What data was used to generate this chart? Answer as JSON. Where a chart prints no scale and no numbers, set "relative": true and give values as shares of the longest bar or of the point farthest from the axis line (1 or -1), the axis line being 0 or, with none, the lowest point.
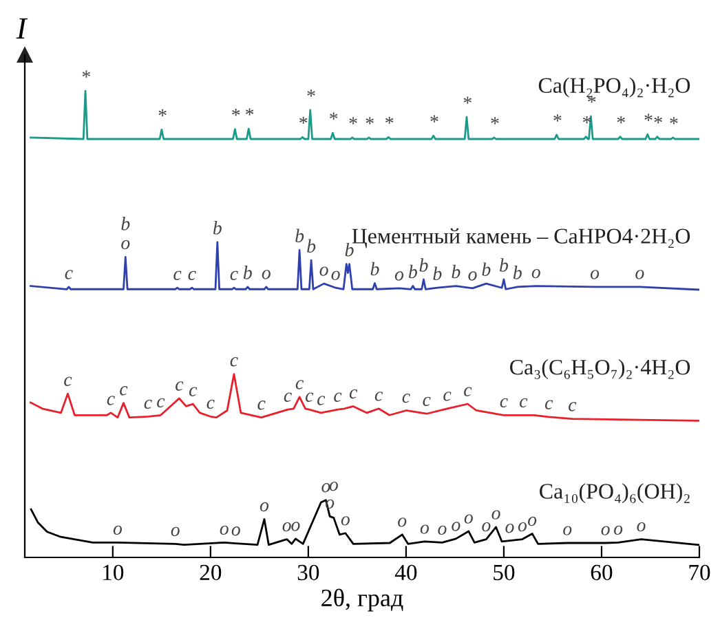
{
  "chart_data": {
    "type": "line",
    "relative": true,
    "xlabel": "2θ, град",
    "ylabel": "I",
    "xlim": [
      1,
      70
    ],
    "xticks": [
      10,
      20,
      30,
      40,
      50,
      60,
      70
    ],
    "tick_labels": "x",
    "grid": false,
    "legend": false,
    "marker": "none",
    "line_style": "solid",
    "series": [
      {
        "name": "Ca(H₂PO₄)₂·H₂O",
        "color": "#1a9a8a",
        "x": [
          1.6,
          7.0,
          7.2,
          7.4,
          14.8,
          15.0,
          15.2,
          22.3,
          22.5,
          22.7,
          23.7,
          23.9,
          24.1,
          29.2,
          29.4,
          29.6,
          30.0,
          30.2,
          30.4,
          32.3,
          32.5,
          32.7,
          34.3,
          34.5,
          34.7,
          36.0,
          36.2,
          36.4,
          38.0,
          38.2,
          38.4,
          42.6,
          42.8,
          43.0,
          46.0,
          46.2,
          46.4,
          48.8,
          49.0,
          49.2,
          55.2,
          55.4,
          55.6,
          58.2,
          58.4,
          58.6,
          58.7,
          58.9,
          59.1,
          61.7,
          61.9,
          62.1,
          64.5,
          64.7,
          64.9,
          65.5,
          65.7,
          65.9,
          67.1,
          67.3,
          67.5,
          69.9
        ],
        "values": [
          0.9,
          0.897,
          1.0,
          0.897,
          0.897,
          0.917,
          0.897,
          0.897,
          0.918,
          0.897,
          0.897,
          0.919,
          0.897,
          0.897,
          0.901,
          0.897,
          0.897,
          0.959,
          0.897,
          0.897,
          0.91,
          0.897,
          0.897,
          0.9,
          0.897,
          0.897,
          0.9,
          0.897,
          0.897,
          0.901,
          0.897,
          0.897,
          0.904,
          0.897,
          0.897,
          0.944,
          0.897,
          0.897,
          0.9,
          0.897,
          0.897,
          0.906,
          0.897,
          0.897,
          0.902,
          0.897,
          0.897,
          0.946,
          0.897,
          0.897,
          0.902,
          0.897,
          0.897,
          0.907,
          0.897,
          0.897,
          0.902,
          0.897,
          0.897,
          0.9,
          0.897,
          0.897
        ]
      },
      {
        "name": "Цементный камень – CaHPO4·2H₂O",
        "color": "#2e3fae",
        "x": [
          1.6,
          5.3,
          5.5,
          5.7,
          11.1,
          11.3,
          11.5,
          16.4,
          16.6,
          16.8,
          17.9,
          18.1,
          18.3,
          20.5,
          20.7,
          20.9,
          22.2,
          22.4,
          22.6,
          23.6,
          23.8,
          24.0,
          25.5,
          25.7,
          25.9,
          28.9,
          29.1,
          29.3,
          30.1,
          30.3,
          30.5,
          31.6,
          32.8,
          33.6,
          33.9,
          34.05,
          34.2,
          34.5,
          36.6,
          36.8,
          37.0,
          39.3,
          40.5,
          40.7,
          40.9,
          41.6,
          41.8,
          42.0,
          43.2,
          45.1,
          46.8,
          48.2,
          49.8,
          50.0,
          50.2,
          51.4,
          53.3,
          59.3,
          63.9,
          69.9
        ],
        "values": [
          0.582,
          0.575,
          0.58,
          0.575,
          0.575,
          0.644,
          0.575,
          0.575,
          0.578,
          0.575,
          0.575,
          0.578,
          0.575,
          0.575,
          0.676,
          0.575,
          0.575,
          0.578,
          0.575,
          0.575,
          0.58,
          0.575,
          0.575,
          0.58,
          0.575,
          0.575,
          0.659,
          0.575,
          0.575,
          0.637,
          0.575,
          0.587,
          0.578,
          0.575,
          0.629,
          0.61,
          0.629,
          0.575,
          0.575,
          0.588,
          0.575,
          0.577,
          0.575,
          0.582,
          0.575,
          0.575,
          0.596,
          0.575,
          0.578,
          0.582,
          0.577,
          0.587,
          0.578,
          0.596,
          0.575,
          0.58,
          0.582,
          0.58,
          0.58,
          0.574
        ]
      },
      {
        "name": "Ca₃(C₆H₅O₇)₂·4H₂O",
        "color": "#e8202a",
        "x": [
          1.6,
          2.8,
          4.7,
          5.4,
          6.1,
          9.4,
          9.8,
          10.5,
          11.1,
          11.7,
          13.6,
          14.9,
          16.8,
          17.5,
          18.2,
          18.9,
          20.0,
          20.6,
          21.7,
          22.4,
          23.1,
          25.2,
          27.9,
          28.5,
          29.1,
          29.7,
          30.1,
          31.3,
          33.0,
          33.7,
          34.6,
          36.0,
          37.2,
          38.3,
          40.0,
          42.1,
          44.2,
          46.3,
          47.2,
          50.0,
          52.0,
          53.1,
          54.6,
          57.0,
          69.9
        ],
        "values": [
          0.332,
          0.319,
          0.31,
          0.351,
          0.305,
          0.305,
          0.31,
          0.3,
          0.331,
          0.3,
          0.302,
          0.305,
          0.341,
          0.324,
          0.329,
          0.31,
          0.302,
          0.3,
          0.315,
          0.393,
          0.31,
          0.3,
          0.317,
          0.319,
          0.344,
          0.319,
          0.317,
          0.31,
          0.317,
          0.319,
          0.324,
          0.31,
          0.319,
          0.305,
          0.315,
          0.308,
          0.319,
          0.329,
          0.315,
          0.305,
          0.305,
          0.305,
          0.301,
          0.297,
          0.293
        ]
      },
      {
        "name": "Ca₁₀(PO₄)₆(OH)₂",
        "color": "#000000",
        "x": [
          1.64,
          2.34,
          3.28,
          4.68,
          7.95,
          10.5,
          16.4,
          17.3,
          21.4,
          22.6,
          24.8,
          25.5,
          25.95,
          27.8,
          28.3,
          28.7,
          29.46,
          31.3,
          31.8,
          32.2,
          32.6,
          33.2,
          33.8,
          34.6,
          38.34,
          39.6,
          40.2,
          41.9,
          43.7,
          45.1,
          46.4,
          47.0,
          48.2,
          49.2,
          49.8,
          50.6,
          51.9,
          52.9,
          53.5,
          56.5,
          60.4,
          61.7,
          64.05,
          69.9
        ],
        "values": [
          0.103,
          0.075,
          0.055,
          0.044,
          0.032,
          0.032,
          0.029,
          0.027,
          0.032,
          0.03,
          0.027,
          0.082,
          0.027,
          0.039,
          0.029,
          0.04,
          0.029,
          0.118,
          0.123,
          0.088,
          0.085,
          0.049,
          0.052,
          0.029,
          0.031,
          0.049,
          0.029,
          0.034,
          0.032,
          0.04,
          0.056,
          0.032,
          0.039,
          0.065,
          0.034,
          0.036,
          0.039,
          0.051,
          0.029,
          0.031,
          0.031,
          0.032,
          0.039,
          0.027
        ]
      }
    ],
    "annotations": [
      {
        "text": "*",
        "x": 7.2,
        "y": 1.0
      },
      {
        "text": "*",
        "x": 15.0,
        "y": 0.917
      },
      {
        "text": "*",
        "x": 22.5,
        "y": 0.918
      },
      {
        "text": "*",
        "x": 23.9,
        "y": 0.919
      },
      {
        "text": "*",
        "x": 29.4,
        "y": 0.901
      },
      {
        "text": "*",
        "x": 30.2,
        "y": 0.959
      },
      {
        "text": "*",
        "x": 32.5,
        "y": 0.91
      },
      {
        "text": "*",
        "x": 34.5,
        "y": 0.9
      },
      {
        "text": "*",
        "x": 36.2,
        "y": 0.9
      },
      {
        "text": "*",
        "x": 38.2,
        "y": 0.901
      },
      {
        "text": "*",
        "x": 42.8,
        "y": 0.904
      },
      {
        "text": "*",
        "x": 46.2,
        "y": 0.944
      },
      {
        "text": "*",
        "x": 49.0,
        "y": 0.9
      },
      {
        "text": "*",
        "x": 55.4,
        "y": 0.906
      },
      {
        "text": "*",
        "x": 58.4,
        "y": 0.902
      },
      {
        "text": "*",
        "x": 58.9,
        "y": 0.946
      },
      {
        "text": "*",
        "x": 61.9,
        "y": 0.902
      },
      {
        "text": "*",
        "x": 64.7,
        "y": 0.907
      },
      {
        "text": "*",
        "x": 65.7,
        "y": 0.902
      },
      {
        "text": "*",
        "x": 67.3,
        "y": 0.9
      },
      {
        "text": "c",
        "x": 5.5,
        "y": 0.58
      },
      {
        "text": "o",
        "x": 11.3,
        "y": 0.644
      },
      {
        "text": "b",
        "x": 11.3,
        "y": 0.644
      },
      {
        "text": "c",
        "x": 16.6,
        "y": 0.578
      },
      {
        "text": "c",
        "x": 18.1,
        "y": 0.578
      },
      {
        "text": "b",
        "x": 20.7,
        "y": 0.676
      },
      {
        "text": "c",
        "x": 22.4,
        "y": 0.578
      },
      {
        "text": "b",
        "x": 23.8,
        "y": 0.58
      },
      {
        "text": "o",
        "x": 25.7,
        "y": 0.58
      },
      {
        "text": "b",
        "x": 29.1,
        "y": 0.659
      },
      {
        "text": "b",
        "x": 30.3,
        "y": 0.637
      },
      {
        "text": "o",
        "x": 31.6,
        "y": 0.587
      },
      {
        "text": "o",
        "x": 32.8,
        "y": 0.578
      },
      {
        "text": "b",
        "x": 34.2,
        "y": 0.629
      },
      {
        "text": "b",
        "x": 36.8,
        "y": 0.588
      },
      {
        "text": "o",
        "x": 39.3,
        "y": 0.577
      },
      {
        "text": "b",
        "x": 40.7,
        "y": 0.582
      },
      {
        "text": "b",
        "x": 41.8,
        "y": 0.596
      },
      {
        "text": "b",
        "x": 43.2,
        "y": 0.578
      },
      {
        "text": "b",
        "x": 45.1,
        "y": 0.582
      },
      {
        "text": "o",
        "x": 46.8,
        "y": 0.577
      },
      {
        "text": "b",
        "x": 48.2,
        "y": 0.587
      },
      {
        "text": "b",
        "x": 50.0,
        "y": 0.596
      },
      {
        "text": "b",
        "x": 51.4,
        "y": 0.58
      },
      {
        "text": "o",
        "x": 53.3,
        "y": 0.582
      },
      {
        "text": "o",
        "x": 59.3,
        "y": 0.58
      },
      {
        "text": "o",
        "x": 63.9,
        "y": 0.58
      },
      {
        "text": "c",
        "x": 5.4,
        "y": 0.351
      },
      {
        "text": "c",
        "x": 9.8,
        "y": 0.31
      },
      {
        "text": "c",
        "x": 11.1,
        "y": 0.331
      },
      {
        "text": "c",
        "x": 13.6,
        "y": 0.302
      },
      {
        "text": "c",
        "x": 14.9,
        "y": 0.305
      },
      {
        "text": "c",
        "x": 16.8,
        "y": 0.341
      },
      {
        "text": "c",
        "x": 18.2,
        "y": 0.329
      },
      {
        "text": "c",
        "x": 20.0,
        "y": 0.302
      },
      {
        "text": "c",
        "x": 22.4,
        "y": 0.393
      },
      {
        "text": "c",
        "x": 25.2,
        "y": 0.3
      },
      {
        "text": "c",
        "x": 27.9,
        "y": 0.317
      },
      {
        "text": "c",
        "x": 29.1,
        "y": 0.344
      },
      {
        "text": "c",
        "x": 30.1,
        "y": 0.317
      },
      {
        "text": "c",
        "x": 31.3,
        "y": 0.31
      },
      {
        "text": "c",
        "x": 33.0,
        "y": 0.317
      },
      {
        "text": "c",
        "x": 34.6,
        "y": 0.324
      },
      {
        "text": "c",
        "x": 37.2,
        "y": 0.319
      },
      {
        "text": "c",
        "x": 40.0,
        "y": 0.315
      },
      {
        "text": "c",
        "x": 42.1,
        "y": 0.308
      },
      {
        "text": "c",
        "x": 44.2,
        "y": 0.319
      },
      {
        "text": "c",
        "x": 46.3,
        "y": 0.329
      },
      {
        "text": "c",
        "x": 50.0,
        "y": 0.305
      },
      {
        "text": "c",
        "x": 52.0,
        "y": 0.305
      },
      {
        "text": "c",
        "x": 54.6,
        "y": 0.301
      },
      {
        "text": "c",
        "x": 57.0,
        "y": 0.297
      },
      {
        "text": "o",
        "x": 10.5,
        "y": 0.032
      },
      {
        "text": "o",
        "x": 16.4,
        "y": 0.029
      },
      {
        "text": "o",
        "x": 21.4,
        "y": 0.032
      },
      {
        "text": "o",
        "x": 22.6,
        "y": 0.03
      },
      {
        "text": "o",
        "x": 25.5,
        "y": 0.082
      },
      {
        "text": "o",
        "x": 27.8,
        "y": 0.039
      },
      {
        "text": "o",
        "x": 28.7,
        "y": 0.04
      },
      {
        "text": "o",
        "x": 31.8,
        "y": 0.123
      },
      {
        "text": "o",
        "x": 32.2,
        "y": 0.088
      },
      {
        "text": "o",
        "x": 32.6,
        "y": 0.085
      },
      {
        "text": "o",
        "x": 33.8,
        "y": 0.052
      },
      {
        "text": "o",
        "x": 39.6,
        "y": 0.049
      },
      {
        "text": "o",
        "x": 41.9,
        "y": 0.034
      },
      {
        "text": "o",
        "x": 43.7,
        "y": 0.032
      },
      {
        "text": "o",
        "x": 45.1,
        "y": 0.04
      },
      {
        "text": "o",
        "x": 46.4,
        "y": 0.056
      },
      {
        "text": "o",
        "x": 48.2,
        "y": 0.039
      },
      {
        "text": "o",
        "x": 49.2,
        "y": 0.065
      },
      {
        "text": "o",
        "x": 50.6,
        "y": 0.036
      },
      {
        "text": "o",
        "x": 51.9,
        "y": 0.039
      },
      {
        "text": "o",
        "x": 52.9,
        "y": 0.051
      },
      {
        "text": "o",
        "x": 56.5,
        "y": 0.031
      },
      {
        "text": "o",
        "x": 60.4,
        "y": 0.031
      },
      {
        "text": "o",
        "x": 61.7,
        "y": 0.032
      },
      {
        "text": "o",
        "x": 64.05,
        "y": 0.039
      }
    ]
  }
}
